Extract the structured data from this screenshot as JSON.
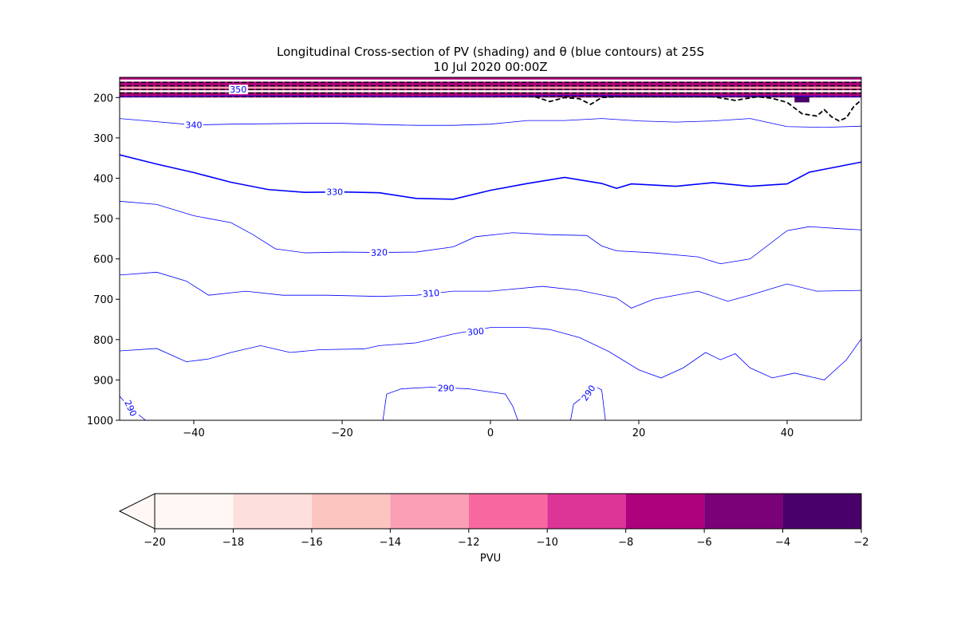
{
  "figure": {
    "title_line1": "Longitudinal Cross-section of PV (shading) and θ (blue contours) at 25S",
    "title_line2": "10 Jul 2020 00:00Z"
  },
  "chart_data": {
    "type": "contour",
    "x_ticks": [
      -40,
      -20,
      0,
      20,
      40
    ],
    "y_ticks": [
      200,
      300,
      400,
      500,
      600,
      700,
      800,
      900,
      1000
    ],
    "xlim": [
      -50,
      50
    ],
    "ylim": [
      1000,
      150
    ],
    "y_inverted": true,
    "grid": false,
    "theta_contours": [
      {
        "level": 340,
        "label": "340",
        "color": "#0000ff",
        "points": [
          [
            -50,
            252
          ],
          [
            -45,
            260
          ],
          [
            -40,
            268
          ],
          [
            -35,
            266
          ],
          [
            -30,
            265
          ],
          [
            -25,
            264
          ],
          [
            -20,
            264
          ],
          [
            -15,
            267
          ],
          [
            -10,
            269
          ],
          [
            -5,
            269
          ],
          [
            0,
            266
          ],
          [
            5,
            257
          ],
          [
            10,
            257
          ],
          [
            15,
            252
          ],
          [
            20,
            258
          ],
          [
            25,
            261
          ],
          [
            30,
            258
          ],
          [
            35,
            252
          ],
          [
            40,
            272
          ],
          [
            45,
            274
          ],
          [
            50,
            271
          ]
        ]
      },
      {
        "level": 330,
        "label": "330",
        "color": "#0000ff",
        "bold": true,
        "points": [
          [
            -50,
            342
          ],
          [
            -45,
            365
          ],
          [
            -40,
            386
          ],
          [
            -35,
            410
          ],
          [
            -30,
            428
          ],
          [
            -25,
            435
          ],
          [
            -20,
            434
          ],
          [
            -15,
            436
          ],
          [
            -10,
            450
          ],
          [
            -5,
            452
          ],
          [
            0,
            430
          ],
          [
            5,
            413
          ],
          [
            10,
            398
          ],
          [
            15,
            413
          ],
          [
            17,
            425
          ],
          [
            19,
            414
          ],
          [
            25,
            420
          ],
          [
            30,
            411
          ],
          [
            35,
            420
          ],
          [
            40,
            414
          ],
          [
            43,
            385
          ],
          [
            50,
            360
          ]
        ]
      },
      {
        "level": 320,
        "label": "320",
        "color": "#0000ff",
        "points": [
          [
            -50,
            457
          ],
          [
            -45,
            465
          ],
          [
            -40,
            493
          ],
          [
            -35,
            510
          ],
          [
            -32,
            540
          ],
          [
            -29,
            575
          ],
          [
            -25,
            585
          ],
          [
            -20,
            583
          ],
          [
            -15,
            584
          ],
          [
            -10,
            583
          ],
          [
            -5,
            570
          ],
          [
            -2,
            545
          ],
          [
            3,
            535
          ],
          [
            8,
            540
          ],
          [
            13,
            542
          ],
          [
            15,
            568
          ],
          [
            17,
            580
          ],
          [
            22,
            585
          ],
          [
            28,
            595
          ],
          [
            31,
            612
          ],
          [
            35,
            600
          ],
          [
            40,
            530
          ],
          [
            43,
            520
          ],
          [
            47,
            525
          ],
          [
            50,
            528
          ]
        ]
      },
      {
        "level": 310,
        "label": "310",
        "color": "#0000ff",
        "points": [
          [
            -50,
            640
          ],
          [
            -45,
            633
          ],
          [
            -41,
            655
          ],
          [
            -38,
            690
          ],
          [
            -33,
            680
          ],
          [
            -28,
            690
          ],
          [
            -22,
            690
          ],
          [
            -15,
            693
          ],
          [
            -10,
            690
          ],
          [
            -5,
            680
          ],
          [
            0,
            680
          ],
          [
            7,
            668
          ],
          [
            12,
            678
          ],
          [
            17,
            697
          ],
          [
            19,
            722
          ],
          [
            22,
            700
          ],
          [
            28,
            680
          ],
          [
            32,
            705
          ],
          [
            35,
            690
          ],
          [
            40,
            662
          ],
          [
            44,
            680
          ],
          [
            50,
            678
          ]
        ]
      },
      {
        "level": 300,
        "label": "300",
        "color": "#0000ff",
        "points": [
          [
            -50,
            828
          ],
          [
            -45,
            822
          ],
          [
            -41,
            855
          ],
          [
            -38,
            848
          ],
          [
            -35,
            832
          ],
          [
            -31,
            815
          ],
          [
            -27,
            832
          ],
          [
            -23,
            825
          ],
          [
            -17,
            823
          ],
          [
            -15,
            815
          ],
          [
            -10,
            808
          ],
          [
            -5,
            786
          ],
          [
            0,
            770
          ],
          [
            5,
            770
          ],
          [
            8,
            775
          ],
          [
            12,
            795
          ],
          [
            16,
            830
          ],
          [
            20,
            875
          ],
          [
            23,
            895
          ],
          [
            26,
            870
          ],
          [
            29,
            832
          ],
          [
            31,
            850
          ],
          [
            33,
            835
          ],
          [
            35,
            870
          ],
          [
            38,
            895
          ],
          [
            41,
            883
          ],
          [
            45,
            900
          ],
          [
            48,
            850
          ],
          [
            50,
            798
          ]
        ]
      },
      {
        "level": 290,
        "label": "290",
        "color": "#0000ff",
        "points": [
          [
            -14.5,
            1000
          ],
          [
            -14,
            935
          ],
          [
            -12,
            922
          ],
          [
            -8,
            918
          ],
          [
            -3,
            922
          ],
          [
            2,
            935
          ],
          [
            3,
            965
          ],
          [
            3.7,
            1000
          ]
        ]
      },
      {
        "level": 290,
        "label": "290",
        "color": "#0000ff",
        "points": [
          [
            10.8,
            1000
          ],
          [
            11.2,
            960
          ],
          [
            13.2,
            932
          ],
          [
            14,
            915
          ],
          [
            15,
            925
          ],
          [
            15.5,
            1000
          ]
        ]
      },
      {
        "level": 290,
        "label": "290",
        "color": "#0000ff",
        "points": [
          [
            -50,
            940
          ],
          [
            -49,
            962
          ],
          [
            -47.5,
            985
          ],
          [
            -46.5,
            1000
          ]
        ]
      },
      {
        "level": 350,
        "label": "350",
        "color": "#0000ff",
        "points": [
          [
            -50,
            198
          ],
          [
            -40,
            197
          ],
          [
            -30,
            196
          ],
          [
            -20,
            196
          ],
          [
            -10,
            198
          ],
          [
            0,
            197
          ],
          [
            10,
            195
          ],
          [
            20,
            196
          ],
          [
            30,
            197
          ],
          [
            40,
            196
          ],
          [
            50,
            198
          ]
        ]
      }
    ],
    "pv_colorbar": {
      "label": "PVU",
      "levels": [
        -20,
        -18,
        -16,
        -14,
        -12,
        -10,
        -8,
        -6,
        -4,
        -2
      ],
      "colors": [
        "#fff7f3",
        "#fde0dd",
        "#fcc5c0",
        "#fa9fb5",
        "#f768a1",
        "#dd3497",
        "#ae017e",
        "#7a0177",
        "#49006a"
      ],
      "extend": "min",
      "tick_labels": [
        "−20",
        "−18",
        "−16",
        "−14",
        "−12",
        "−10",
        "−8",
        "−6",
        "−4",
        "−2"
      ]
    },
    "pv_contour_dashed": {
      "color": "#000000",
      "points": [
        [
          6,
          198
        ],
        [
          8,
          210
        ],
        [
          10,
          200
        ],
        [
          12,
          203
        ],
        [
          13.5,
          217
        ],
        [
          15,
          200
        ],
        [
          17,
          198
        ],
        [
          30,
          198
        ],
        [
          33,
          207
        ],
        [
          36,
          198
        ],
        [
          38,
          202
        ],
        [
          40,
          212
        ],
        [
          42,
          240
        ],
        [
          44,
          246
        ],
        [
          45,
          230
        ],
        [
          46,
          248
        ],
        [
          47,
          258
        ],
        [
          48,
          250
        ],
        [
          49,
          222
        ],
        [
          50,
          206
        ]
      ]
    }
  }
}
